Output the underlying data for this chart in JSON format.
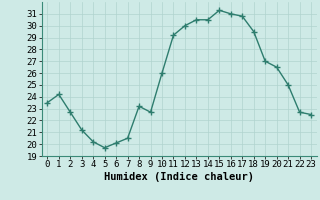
{
  "x": [
    0,
    1,
    2,
    3,
    4,
    5,
    6,
    7,
    8,
    9,
    10,
    11,
    12,
    13,
    14,
    15,
    16,
    17,
    18,
    19,
    20,
    21,
    22,
    23
  ],
  "y": [
    23.5,
    24.2,
    22.7,
    21.2,
    20.2,
    19.7,
    20.1,
    20.5,
    23.2,
    22.7,
    26.0,
    29.2,
    30.0,
    30.5,
    30.5,
    31.3,
    31.0,
    30.8,
    29.5,
    27.0,
    26.5,
    25.0,
    22.7,
    22.5
  ],
  "xlabel": "Humidex (Indice chaleur)",
  "line_color": "#2e7d6e",
  "marker": "+",
  "marker_color": "#2e7d6e",
  "bg_color": "#ceeae6",
  "grid_color": "#b0d4ce",
  "ylim": [
    19,
    32
  ],
  "xlim": [
    -0.5,
    23.5
  ],
  "yticks": [
    19,
    20,
    21,
    22,
    23,
    24,
    25,
    26,
    27,
    28,
    29,
    30,
    31
  ],
  "xticks": [
    0,
    1,
    2,
    3,
    4,
    5,
    6,
    7,
    8,
    9,
    10,
    11,
    12,
    13,
    14,
    15,
    16,
    17,
    18,
    19,
    20,
    21,
    22,
    23
  ],
  "xlabel_fontsize": 7.5,
  "tick_fontsize": 6.5,
  "linewidth": 1.0,
  "markersize": 4
}
